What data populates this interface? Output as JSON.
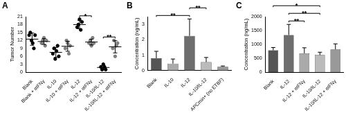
{
  "chart_data": [
    {
      "panel": "A",
      "type": "scatter",
      "y_label": "Tumor Number",
      "categories": [
        "Blank",
        "Blank + αIFNγ",
        "IL-10",
        "IL-10 + αIFNγ",
        "IL-12",
        "IL-12 + αIFNγ",
        "IL-10/IL-12",
        "IL-10/IL-12 + αIFNγ"
      ],
      "points": [
        [
          14,
          15,
          12,
          11,
          9,
          14
        ],
        [
          11,
          12,
          13,
          10,
          12
        ],
        [
          7,
          9,
          5,
          8,
          10,
          6
        ],
        [
          9,
          12,
          11,
          7,
          10
        ],
        [
          17,
          18,
          20,
          16,
          19
        ],
        [
          11,
          12,
          10,
          13,
          11
        ],
        [
          2,
          1,
          3,
          2,
          1
        ],
        [
          9,
          12,
          6,
          10,
          11
        ]
      ],
      "means": [
        12.5,
        11.6,
        7.5,
        9.8,
        18,
        11.4,
        1.8,
        9.6
      ],
      "errors": [
        2.3,
        1.1,
        1.9,
        1.9,
        1.6,
        1.1,
        0.8,
        2.3
      ],
      "colors": [
        "#000000",
        "#808080",
        "#000000",
        "#808080",
        "#000000",
        "#808080",
        "#000000",
        "#808080"
      ],
      "marker": "circle",
      "ylim": [
        0,
        21
      ],
      "yticks": [
        0,
        3,
        6,
        9,
        12,
        15,
        18,
        21
      ],
      "grid": false,
      "comparisons": [
        {
          "from": 4,
          "to": 5,
          "label": "*"
        },
        {
          "from": 6,
          "to": 7,
          "label": "**"
        }
      ]
    },
    {
      "panel": "B",
      "type": "bar",
      "y_label": "Concentration (ng/mL)",
      "categories": [
        "Blank",
        "IL-10",
        "IL-12",
        "IL-10/IL-12",
        "APCmin+ (no ETBF)"
      ],
      "values": [
        0.8,
        0.45,
        2.25,
        0.55,
        0.25
      ],
      "errors": [
        0.45,
        0.3,
        1.1,
        0.3,
        0.05
      ],
      "colors": [
        "#555555",
        "#aaaaaa",
        "#6e6e6e",
        "#bbbbbb",
        "#999999"
      ],
      "ylim": [
        0,
        3.5
      ],
      "yticks": [
        0,
        1,
        2,
        3
      ],
      "grid": false,
      "comparisons": [
        {
          "from": 0,
          "to": 2,
          "label": "**"
        },
        {
          "from": 2,
          "to": 3,
          "label": "**"
        }
      ]
    },
    {
      "panel": "C",
      "type": "bar",
      "y_label": "Concentration (ng/mL)",
      "categories": [
        "Blank",
        "IL-12",
        "IL-12 + αIFNγ",
        "IL-10/IL-12",
        "IL-10/IL-12 + αIFNγ"
      ],
      "values": [
        790,
        1340,
        680,
        620,
        820
      ],
      "errors": [
        100,
        380,
        200,
        100,
        200
      ],
      "colors": [
        "#555555",
        "#6e6e6e",
        "#aaaaaa",
        "#bbbbbb",
        "#999999"
      ],
      "ylim": [
        0,
        2000
      ],
      "yticks": [
        0,
        500,
        1000,
        1500,
        2000
      ],
      "grid": false,
      "comparisons": [
        {
          "from": 1,
          "to": 2,
          "label": "**"
        },
        {
          "from": 1,
          "to": 3,
          "label": "**"
        },
        {
          "from": 0,
          "to": 3,
          "label": "*"
        }
      ]
    }
  ]
}
